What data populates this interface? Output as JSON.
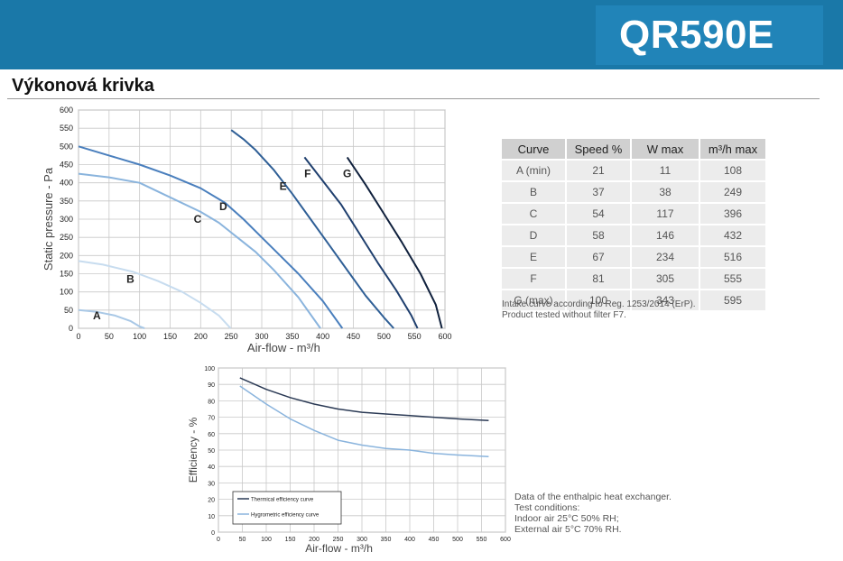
{
  "header": {
    "model": "QR590E"
  },
  "section_title": "Výkonová krivka",
  "performance_chart": {
    "chart_data": {
      "type": "line",
      "xlabel": "Air-flow - m³/h",
      "ylabel": "Static pressure - Pa",
      "xlim": [
        0,
        600
      ],
      "ylim": [
        0,
        600
      ],
      "x_ticks": [
        0,
        50,
        100,
        150,
        200,
        250,
        300,
        350,
        400,
        450,
        500,
        550,
        600
      ],
      "y_ticks": [
        0,
        50,
        100,
        150,
        200,
        250,
        300,
        350,
        400,
        450,
        500,
        550,
        600
      ],
      "grid": true,
      "series": [
        {
          "name": "A",
          "color": "#a9c8e6",
          "label_at": [
            30,
            25
          ],
          "points": [
            [
              0,
              50
            ],
            [
              30,
              45
            ],
            [
              60,
              35
            ],
            [
              85,
              20
            ],
            [
              100,
              5
            ],
            [
              108,
              0
            ]
          ]
        },
        {
          "name": "B",
          "color": "#c7dcef",
          "label_at": [
            85,
            125
          ],
          "points": [
            [
              0,
              185
            ],
            [
              40,
              175
            ],
            [
              90,
              155
            ],
            [
              130,
              130
            ],
            [
              170,
              100
            ],
            [
              200,
              70
            ],
            [
              230,
              35
            ],
            [
              249,
              0
            ]
          ]
        },
        {
          "name": "C",
          "color": "#8ab4dd",
          "label_at": [
            195,
            290
          ],
          "points": [
            [
              0,
              425
            ],
            [
              50,
              415
            ],
            [
              100,
              400
            ],
            [
              150,
              360
            ],
            [
              200,
              320
            ],
            [
              230,
              290
            ],
            [
              260,
              250
            ],
            [
              290,
              210
            ],
            [
              320,
              160
            ],
            [
              360,
              85
            ],
            [
              396,
              0
            ]
          ]
        },
        {
          "name": "D",
          "color": "#4a7fbd",
          "label_at": [
            237,
            325
          ],
          "points": [
            [
              0,
              500
            ],
            [
              50,
              475
            ],
            [
              100,
              450
            ],
            [
              150,
              420
            ],
            [
              200,
              385
            ],
            [
              240,
              345
            ],
            [
              270,
              300
            ],
            [
              300,
              250
            ],
            [
              330,
              200
            ],
            [
              360,
              150
            ],
            [
              400,
              75
            ],
            [
              432,
              0
            ]
          ]
        },
        {
          "name": "E",
          "color": "#2f5f96",
          "label_at": [
            335,
            380
          ],
          "points": [
            [
              250,
              545
            ],
            [
              270,
              520
            ],
            [
              290,
              490
            ],
            [
              320,
              435
            ],
            [
              350,
              370
            ],
            [
              380,
              300
            ],
            [
              410,
              230
            ],
            [
              440,
              160
            ],
            [
              470,
              90
            ],
            [
              500,
              30
            ],
            [
              516,
              0
            ]
          ]
        },
        {
          "name": "F",
          "color": "#1f3f6e",
          "label_at": [
            375,
            415
          ],
          "points": [
            [
              370,
              470
            ],
            [
              400,
              405
            ],
            [
              430,
              340
            ],
            [
              460,
              260
            ],
            [
              490,
              180
            ],
            [
              520,
              105
            ],
            [
              545,
              35
            ],
            [
              555,
              0
            ]
          ]
        },
        {
          "name": "G",
          "color": "#10213d",
          "label_at": [
            440,
            415
          ],
          "points": [
            [
              440,
              470
            ],
            [
              470,
              395
            ],
            [
              500,
              315
            ],
            [
              530,
              235
            ],
            [
              560,
              150
            ],
            [
              585,
              65
            ],
            [
              595,
              0
            ]
          ]
        }
      ]
    }
  },
  "spec_table": {
    "headers": [
      "Curve",
      "Speed  %",
      "W max",
      "m³/h max"
    ],
    "rows": [
      [
        "A (min)",
        "21",
        "11",
        "108"
      ],
      [
        "B",
        "37",
        "38",
        "249"
      ],
      [
        "C",
        "54",
        "117",
        "396"
      ],
      [
        "D",
        "58",
        "146",
        "432"
      ],
      [
        "E",
        "67",
        "234",
        "516"
      ],
      [
        "F",
        "81",
        "305",
        "555"
      ],
      [
        "G (max)",
        "100",
        "343",
        "595"
      ]
    ],
    "note_line1": "Intake curve according to Reg. 1253/2014 (ErP).",
    "note_line2": "Product tested without filter F7."
  },
  "efficiency_chart": {
    "chart_data": {
      "type": "line",
      "xlabel": "Air-flow - m³/h",
      "ylabel": "Efficiency - %",
      "xlim": [
        0,
        600
      ],
      "ylim": [
        0,
        100
      ],
      "x_ticks": [
        0,
        50,
        100,
        150,
        200,
        250,
        300,
        350,
        400,
        450,
        500,
        550,
        600
      ],
      "y_ticks": [
        0,
        10,
        20,
        30,
        40,
        50,
        60,
        70,
        80,
        90,
        100
      ],
      "grid": true,
      "legend_position": "bottom-left",
      "series": [
        {
          "name": "Thermical efficiency curve",
          "color": "#2b3a55",
          "points": [
            [
              45,
              94
            ],
            [
              100,
              87
            ],
            [
              150,
              82
            ],
            [
              200,
              78
            ],
            [
              250,
              75
            ],
            [
              300,
              73
            ],
            [
              350,
              72
            ],
            [
              400,
              71
            ],
            [
              450,
              70
            ],
            [
              500,
              69
            ],
            [
              565,
              68
            ]
          ]
        },
        {
          "name": "Hygrometric efficiency curve",
          "color": "#8ab4dd",
          "points": [
            [
              45,
              89
            ],
            [
              100,
              78
            ],
            [
              150,
              69
            ],
            [
              200,
              62
            ],
            [
              250,
              56
            ],
            [
              300,
              53
            ],
            [
              350,
              51
            ],
            [
              400,
              50
            ],
            [
              450,
              48
            ],
            [
              500,
              47
            ],
            [
              565,
              46
            ]
          ]
        }
      ]
    }
  },
  "efficiency_note": {
    "line1": "Data of the enthalpic heat exchanger.",
    "line2": "Test conditions:",
    "line3": "Indoor air 25°C 50% RH;",
    "line4": "External air 5°C 70% RH."
  }
}
